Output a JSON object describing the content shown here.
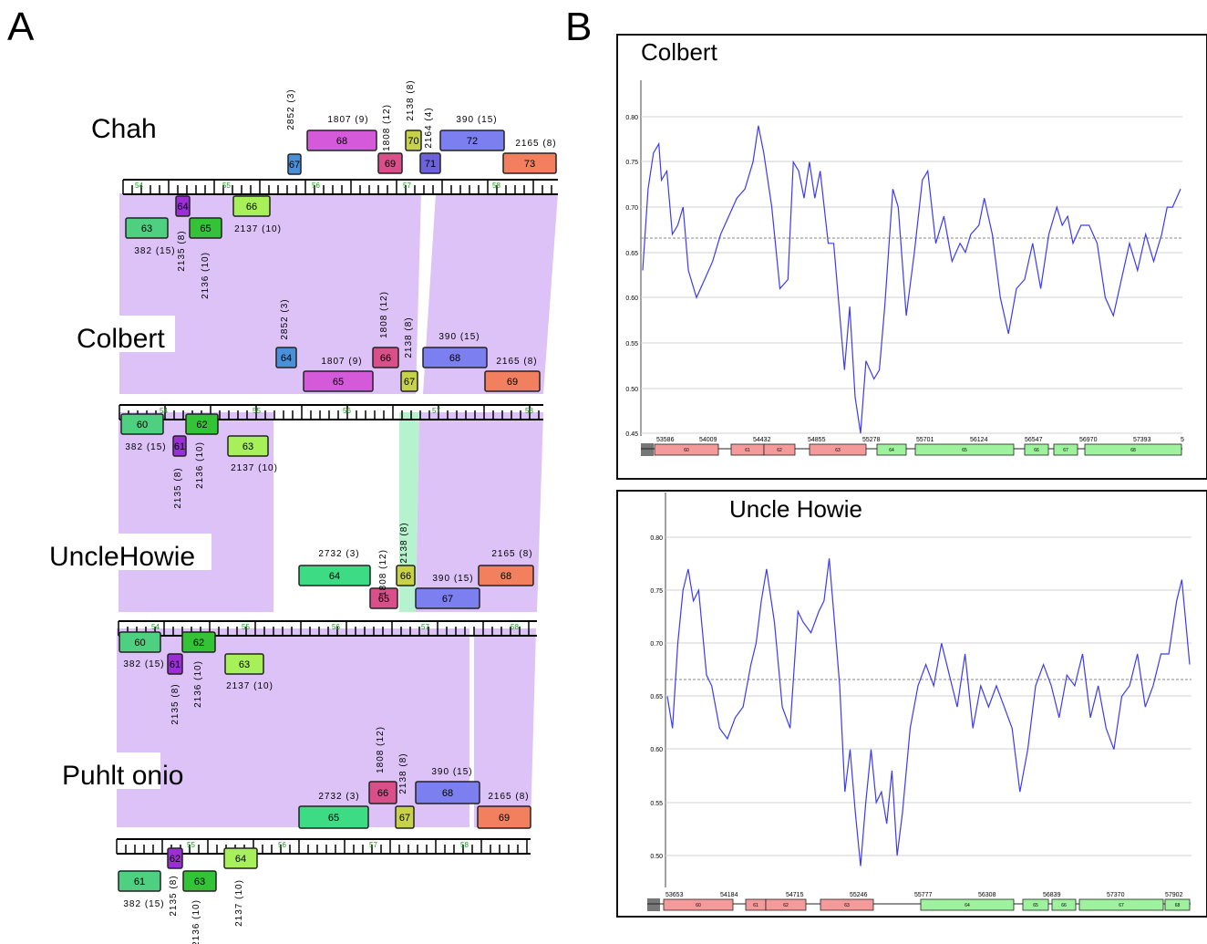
{
  "panel_a": {
    "letter": "A",
    "tracks": [
      {
        "name": "Chah",
        "ruler": [
          "54",
          "55",
          "56",
          "57",
          "58"
        ],
        "upper_genes": [
          {
            "num": "67",
            "color": "#4a90d9",
            "pham": "2852 (3)",
            "rot": true
          },
          {
            "num": "68",
            "color": "#d55ad9",
            "pham": "1807 (9)",
            "rot": false
          },
          {
            "num": "69",
            "color": "#d94f8a",
            "pham": "1808 (12)",
            "rot": true
          },
          {
            "num": "70",
            "color": "#c7d14a",
            "pham": "2138 (8)",
            "rot": true
          },
          {
            "num": "71",
            "color": "#6d62d9",
            "pham": "2164 (4)",
            "rot": true
          },
          {
            "num": "72",
            "color": "#7b7ff0",
            "pham": "390 (15)",
            "rot": false
          },
          {
            "num": "73",
            "color": "#f2805e",
            "pham": "2165 (8)",
            "rot": false
          }
        ],
        "lower_genes": [
          {
            "num": "63",
            "color": "#4fcf80",
            "pham": "382 (15)",
            "rot": false
          },
          {
            "num": "64",
            "color": "#9b2ed6",
            "pham": "2135 (8)",
            "rot": true
          },
          {
            "num": "65",
            "color": "#34c236",
            "pham": "2136 (10)",
            "rot": true
          },
          {
            "num": "66",
            "color": "#a8f05a",
            "pham": "2137 (10)",
            "rot": false
          }
        ]
      },
      {
        "name": "Colbert",
        "ruler": [
          "54",
          "55",
          "56",
          "57",
          "58"
        ],
        "upper_genes": [
          {
            "num": "64",
            "color": "#4a90d9",
            "pham": "2852 (3)",
            "rot": true
          },
          {
            "num": "65",
            "color": "#d55ad9",
            "pham": "1807 (9)",
            "rot": false
          },
          {
            "num": "66",
            "color": "#d94f8a",
            "pham": "1808 (12)",
            "rot": true
          },
          {
            "num": "67",
            "color": "#c7d14a",
            "pham": "2138 (8)",
            "rot": true
          },
          {
            "num": "68",
            "color": "#7b7ff0",
            "pham": "390 (15)",
            "rot": false
          },
          {
            "num": "69",
            "color": "#f2805e",
            "pham": "2165 (8)",
            "rot": false
          }
        ],
        "lower_genes": [
          {
            "num": "60",
            "color": "#4fcf80",
            "pham": "382 (15)",
            "rot": false
          },
          {
            "num": "61",
            "color": "#9b2ed6",
            "pham": "2135 (8)",
            "rot": true
          },
          {
            "num": "62",
            "color": "#34c236",
            "pham": "2136 (10)",
            "rot": true
          },
          {
            "num": "63",
            "color": "#a8f05a",
            "pham": "2137 (10)",
            "rot": false
          }
        ]
      },
      {
        "name": "UncleHowie",
        "ruler": [
          "54",
          "55",
          "56",
          "57",
          "58"
        ],
        "upper_genes": [
          {
            "num": "64",
            "color": "#3ddc84",
            "pham": "2732 (3)",
            "rot": false
          },
          {
            "num": "65",
            "color": "#d94f8a",
            "pham": "1808 (12)",
            "rot": true
          },
          {
            "num": "66",
            "color": "#c7d14a",
            "pham": "2138 (8)",
            "rot": true
          },
          {
            "num": "67",
            "color": "#7b7ff0",
            "pham": "390 (15)",
            "rot": false
          },
          {
            "num": "68",
            "color": "#f2805e",
            "pham": "2165 (8)",
            "rot": false
          }
        ],
        "lower_genes": [
          {
            "num": "60",
            "color": "#4fcf80",
            "pham": "382 (15)",
            "rot": false
          },
          {
            "num": "61",
            "color": "#9b2ed6",
            "pham": "2135 (8)",
            "rot": true
          },
          {
            "num": "62",
            "color": "#34c236",
            "pham": "2136 (10)",
            "rot": true
          },
          {
            "num": "63",
            "color": "#a8f05a",
            "pham": "2137 (10)",
            "rot": false
          }
        ]
      },
      {
        "name": "Puhlt onio",
        "ruler": [
          "55",
          "56",
          "57",
          "58"
        ],
        "upper_genes": [
          {
            "num": "65",
            "color": "#3ddc84",
            "pham": "2732 (3)",
            "rot": false
          },
          {
            "num": "66",
            "color": "#d94f8a",
            "pham": "1808 (12)",
            "rot": true
          },
          {
            "num": "67",
            "color": "#c7d14a",
            "pham": "2138 (8)",
            "rot": true
          },
          {
            "num": "68",
            "color": "#7b7ff0",
            "pham": "390 (15)",
            "rot": false
          },
          {
            "num": "69",
            "color": "#f2805e",
            "pham": "2165 (8)",
            "rot": false
          }
        ],
        "lower_genes": [
          {
            "num": "61",
            "color": "#4fcf80",
            "pham": "382 (15)",
            "rot": false
          },
          {
            "num": "62",
            "color": "#9b2ed6",
            "pham": "2135 (8)",
            "rot": true
          },
          {
            "num": "63",
            "color": "#34c236",
            "pham": "2136 (10)",
            "rot": true
          },
          {
            "num": "64",
            "color": "#a8f05a",
            "pham": "2137 (10)",
            "rot": false
          }
        ]
      }
    ],
    "similarity_colors": {
      "purple": "#dcc2f7",
      "green": "#b7f2cf"
    }
  },
  "panel_b": {
    "letter": "B",
    "charts": [
      {
        "title": "Colbert",
        "yticks": [
          "0.80",
          "0.75",
          "0.70",
          "0.65",
          "0.60",
          "0.55",
          "0.50",
          "0.45"
        ],
        "xticks": [
          "53586",
          "54009",
          "54432",
          "54855",
          "55278",
          "55701",
          "56124",
          "56547",
          "56970",
          "57393",
          "5"
        ],
        "genes_left": [
          "60",
          "61",
          "62",
          "63"
        ],
        "genes_right": [
          "64",
          "65",
          "66",
          "67",
          "68"
        ]
      },
      {
        "title": "Uncle Howie",
        "yticks": [
          "0.80",
          "0.75",
          "0.70",
          "0.65",
          "0.60",
          "0.55",
          "0.50"
        ],
        "xticks": [
          "53653",
          "54184",
          "54715",
          "55246",
          "55777",
          "56308",
          "56839",
          "57370",
          "57902"
        ],
        "genes_left": [
          "60",
          "61",
          "62",
          "63"
        ],
        "genes_right": [
          "64",
          "65",
          "66",
          "67",
          "68"
        ]
      }
    ],
    "line_color": "#3b3bf0",
    "gene_colors": {
      "left": "#f59a9a",
      "right": "#9ef29e"
    }
  }
}
